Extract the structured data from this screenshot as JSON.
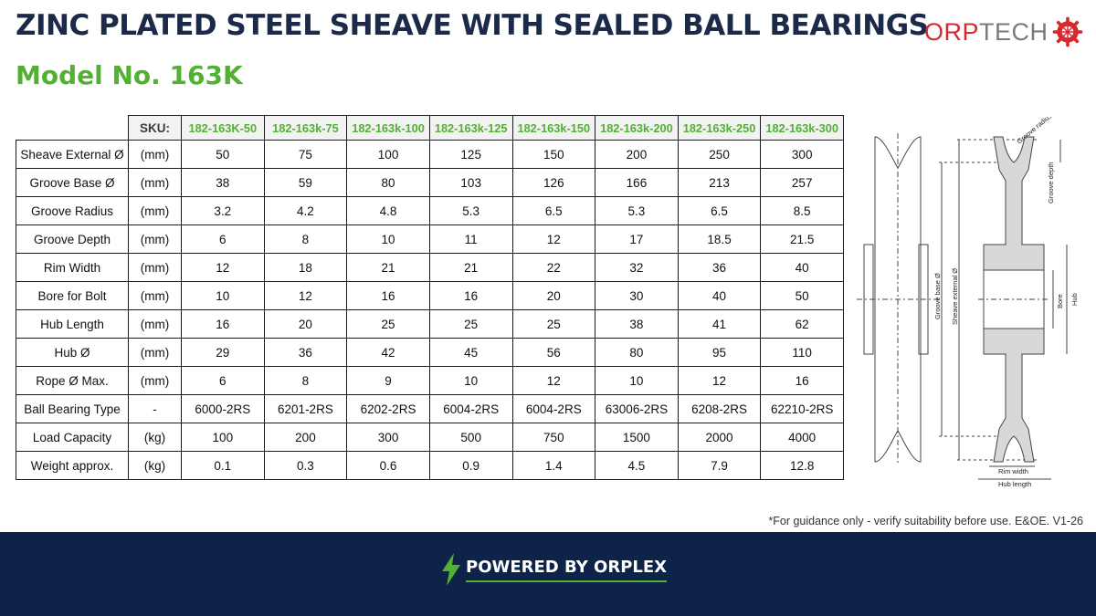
{
  "header": {
    "title": "ZINC PLATED STEEL SHEAVE WITH SEALED BALL BEARINGS",
    "model": "Model No. 163K"
  },
  "logo": {
    "text_red": "ORP",
    "text_gray": "TECH",
    "icon": "gear-flower-icon",
    "color_red": "#d6282f",
    "color_gray": "#7a7a7a"
  },
  "table": {
    "sku_label": "SKU:",
    "skus": [
      "182-163K-50",
      "182-163k-75",
      "182-163k-100",
      "182-163k-125",
      "182-163k-150",
      "182-163k-200",
      "182-163k-250",
      "182-163k-300"
    ],
    "rows": [
      {
        "label": "Sheave External Ø",
        "unit": "(mm)",
        "values": [
          "50",
          "75",
          "100",
          "125",
          "150",
          "200",
          "250",
          "300"
        ]
      },
      {
        "label": "Groove Base Ø",
        "unit": "(mm)",
        "values": [
          "38",
          "59",
          "80",
          "103",
          "126",
          "166",
          "213",
          "257"
        ]
      },
      {
        "label": "Groove Radius",
        "unit": "(mm)",
        "values": [
          "3.2",
          "4.2",
          "4.8",
          "5.3",
          "6.5",
          "5.3",
          "6.5",
          "8.5"
        ]
      },
      {
        "label": "Groove Depth",
        "unit": "(mm)",
        "values": [
          "6",
          "8",
          "10",
          "11",
          "12",
          "17",
          "18.5",
          "21.5"
        ]
      },
      {
        "label": "Rim Width",
        "unit": "(mm)",
        "values": [
          "12",
          "18",
          "21",
          "21",
          "22",
          "32",
          "36",
          "40"
        ]
      },
      {
        "label": "Bore for Bolt",
        "unit": "(mm)",
        "values": [
          "10",
          "12",
          "16",
          "16",
          "20",
          "30",
          "40",
          "50"
        ]
      },
      {
        "label": "Hub Length",
        "unit": "(mm)",
        "values": [
          "16",
          "20",
          "25",
          "25",
          "25",
          "38",
          "41",
          "62"
        ]
      },
      {
        "label": "Hub Ø",
        "unit": "(mm)",
        "values": [
          "29",
          "36",
          "42",
          "45",
          "56",
          "80",
          "95",
          "110"
        ]
      },
      {
        "label": "Rope Ø Max.",
        "unit": "(mm)",
        "values": [
          "6",
          "8",
          "9",
          "10",
          "12",
          "10",
          "12",
          "16"
        ]
      },
      {
        "label": "Ball Bearing Type",
        "unit": "-",
        "values": [
          "6000-2RS",
          "6201-2RS",
          "6202-2RS",
          "6004-2RS",
          "6004-2RS",
          "63006-2RS",
          "6208-2RS",
          "62210-2RS"
        ]
      },
      {
        "label": "Load Capacity",
        "unit": "(kg)",
        "values": [
          "100",
          "200",
          "300",
          "500",
          "750",
          "1500",
          "2000",
          "4000"
        ]
      },
      {
        "label": "Weight approx.",
        "unit": "(kg)",
        "values": [
          "0.1",
          "0.3",
          "0.6",
          "0.9",
          "1.4",
          "4.5",
          "7.9",
          "12.8"
        ]
      }
    ]
  },
  "drawing": {
    "labels": {
      "groove_radius": "Groove radius",
      "groove_depth": "Groove depth",
      "groove_base": "Groove base Ø",
      "sheave_external": "Sheave external Ø",
      "bore": "Bore",
      "hub": "Hub",
      "rim_width": "Rim width",
      "hub_length": "Hub length"
    }
  },
  "note": "*For guidance only - verify suitability before use. E&OE.  V1-26",
  "footer": {
    "powered_by": "POWERED BY ORPLEX",
    "icon": "lightning-bolt-icon",
    "bg_color": "#0e2348",
    "accent_color": "#52b033"
  }
}
